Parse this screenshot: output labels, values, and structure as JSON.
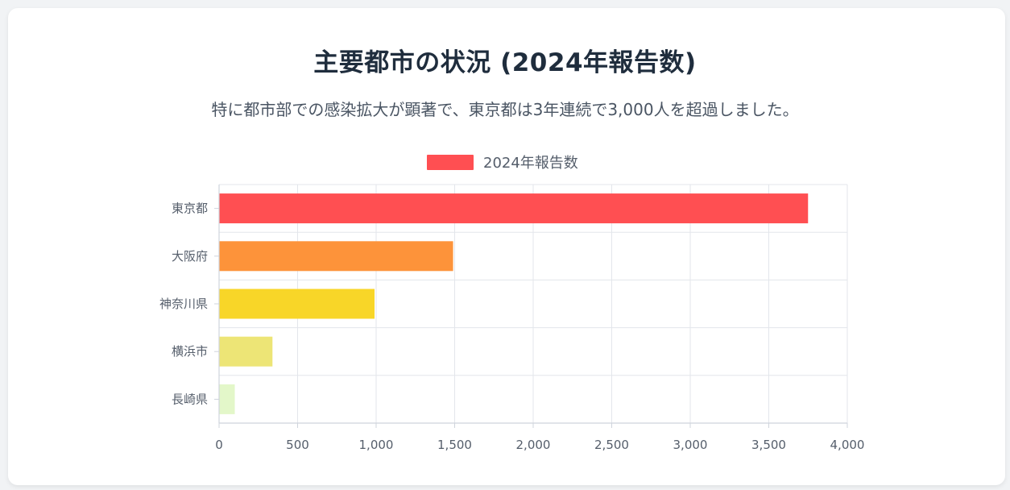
{
  "title": "主要都市の状況 (2024年報告数)",
  "subtitle": "特に都市部での感染拡大が顕著で、東京都は3年連続で3,000人を超過しました。",
  "chart_data": {
    "type": "bar",
    "orientation": "horizontal",
    "categories": [
      "東京都",
      "大阪府",
      "神奈川県",
      "横浜市",
      "長崎県"
    ],
    "series": [
      {
        "name": "2024年報告数",
        "values": [
          3750,
          1490,
          990,
          340,
          100
        ],
        "colors": [
          "#ff4f52",
          "#fd933a",
          "#f8d628",
          "#ede576",
          "#e3f7c9"
        ]
      }
    ],
    "xlim": [
      0,
      4000
    ],
    "xticks": [
      0,
      500,
      1000,
      1500,
      2000,
      2500,
      3000,
      3500,
      4000
    ],
    "xtick_labels": [
      "0",
      "500",
      "1,000",
      "1,500",
      "2,000",
      "2,500",
      "3,000",
      "3,500",
      "4,000"
    ],
    "grid": true,
    "legend_position": "top-center",
    "legend_color": "#ff4f52"
  }
}
